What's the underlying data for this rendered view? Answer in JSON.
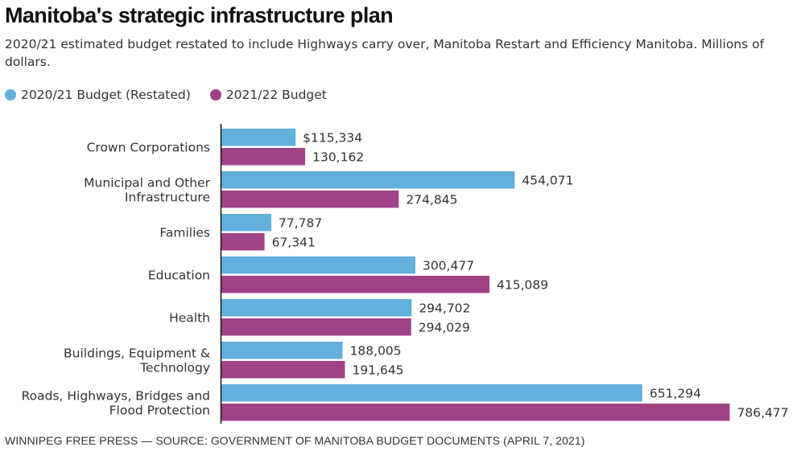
{
  "chart_data": {
    "type": "bar",
    "orientation": "horizontal",
    "title": "Manitoba's strategic infrastructure plan",
    "subtitle": "2020/21 estimated budget restated to include Highways carry over, Manitoba Restart and Efficiency Manitoba. Millions of dollars.",
    "xlabel": "",
    "ylabel": "",
    "xlim": [
      0,
      800000
    ],
    "grid": false,
    "legend_position": "top-left",
    "categories": [
      [
        "Crown Corporations"
      ],
      [
        "Municipal and Other",
        "Infrastructure"
      ],
      [
        "Families"
      ],
      [
        "Education"
      ],
      [
        "Health"
      ],
      [
        "Buildings, Equipment &",
        "Technology"
      ],
      [
        "Roads, Highways, Bridges and",
        "Flood Protection"
      ]
    ],
    "series": [
      {
        "name": "2020/21 Budget (Restated)",
        "color": "#62b0db",
        "values": [
          115334,
          454071,
          77787,
          300477,
          294702,
          188005,
          651294
        ],
        "labels": [
          "$115,334",
          "454,071",
          "77,787",
          "300,477",
          "294,702",
          "188,005",
          "651,294"
        ]
      },
      {
        "name": "2021/22 Budget",
        "color": "#a04386",
        "values": [
          130162,
          274845,
          67341,
          415089,
          294029,
          191645,
          786477
        ],
        "labels": [
          "130,162",
          "274,845",
          "67,341",
          "415,089",
          "294,029",
          "191,645",
          "786,477"
        ]
      }
    ]
  },
  "legend": {
    "items": [
      {
        "label": "2020/21 Budget (Restated)",
        "color": "#62b0db"
      },
      {
        "label": "2021/22 Budget",
        "color": "#a04386"
      }
    ]
  },
  "footer": "WINNIPEG FREE PRESS — SOURCE: GOVERNMENT OF MANITOBA BUDGET DOCUMENTS (APRIL 7, 2021)"
}
